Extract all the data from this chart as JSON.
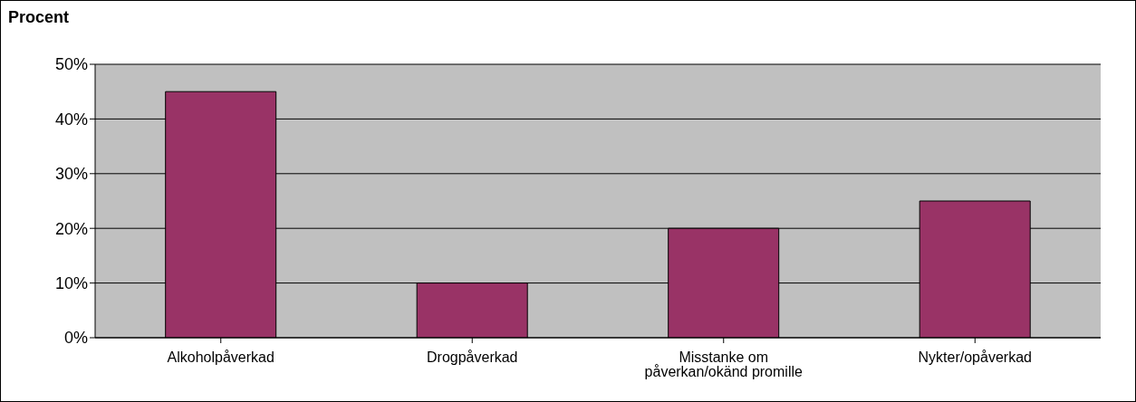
{
  "chart_data": {
    "type": "bar",
    "ylabel": "Procent",
    "categories": [
      "Alkoholpåverkad",
      "Drogpåverkad",
      "Misstanke om påverkan/okänd promille",
      "Nykter/opåverkad"
    ],
    "values": [
      45,
      10,
      20,
      25
    ],
    "color": "#993366",
    "ylim": [
      0,
      50
    ],
    "yticks": [
      {
        "value": 0,
        "label": "0%"
      },
      {
        "value": 10,
        "label": "10%"
      },
      {
        "value": 20,
        "label": "20%"
      },
      {
        "value": 30,
        "label": "30%"
      },
      {
        "value": 40,
        "label": "40%"
      },
      {
        "value": 50,
        "label": "50%"
      }
    ],
    "grid": "y",
    "legend": false
  }
}
